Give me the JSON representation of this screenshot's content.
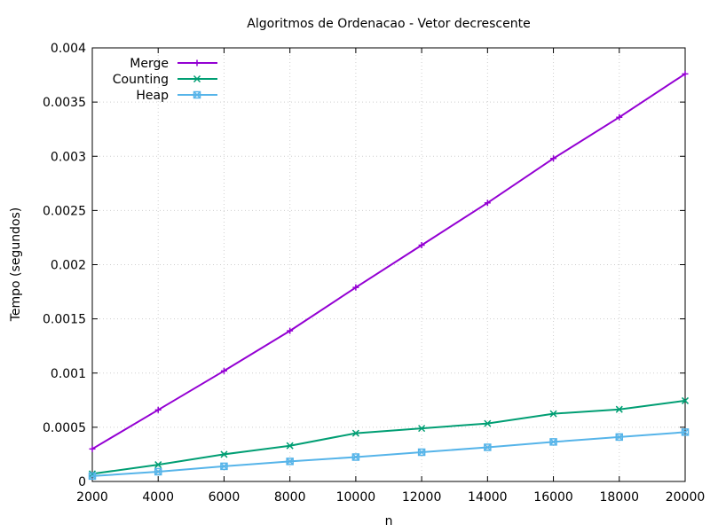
{
  "chart_data": {
    "type": "line",
    "title": "Algoritmos de Ordenacao - Vetor decrescente",
    "xlabel": "n",
    "ylabel": "Tempo (segundos)",
    "xlim": [
      2000,
      20000
    ],
    "ylim": [
      0,
      0.004
    ],
    "xticks": [
      2000,
      4000,
      6000,
      8000,
      10000,
      12000,
      14000,
      16000,
      18000,
      20000
    ],
    "xtick_labels": [
      "2000",
      "4000",
      "6000",
      "8000",
      "10000",
      "12000",
      "14000",
      "16000",
      "18000",
      "20000"
    ],
    "yticks": [
      0,
      0.0005,
      0.001,
      0.0015,
      0.002,
      0.0025,
      0.003,
      0.0035,
      0.004
    ],
    "ytick_labels": [
      "0",
      "0.0005",
      "0.001",
      "0.0015",
      "0.002",
      "0.0025",
      "0.003",
      "0.0035",
      "0.004"
    ],
    "grid": true,
    "legend_position": "top-left",
    "x": [
      2000,
      4000,
      6000,
      8000,
      10000,
      12000,
      14000,
      16000,
      18000,
      20000
    ],
    "series": [
      {
        "name": "Merge",
        "color": "#9400d3",
        "marker": "plus",
        "values": [
          0.0003,
          0.00066,
          0.00102,
          0.00139,
          0.00179,
          0.00218,
          0.00257,
          0.00298,
          0.00336,
          0.00376
        ]
      },
      {
        "name": "Counting",
        "color": "#009e73",
        "marker": "cross",
        "values": [
          7e-05,
          0.000155,
          0.00025,
          0.00033,
          0.000445,
          0.00049,
          0.000535,
          0.000625,
          0.000665,
          0.000745
        ]
      },
      {
        "name": "Heap",
        "color": "#56b4e9",
        "marker": "box-cross",
        "values": [
          5e-05,
          9e-05,
          0.00014,
          0.000185,
          0.000225,
          0.00027,
          0.000315,
          0.000365,
          0.00041,
          0.000455
        ]
      }
    ]
  }
}
